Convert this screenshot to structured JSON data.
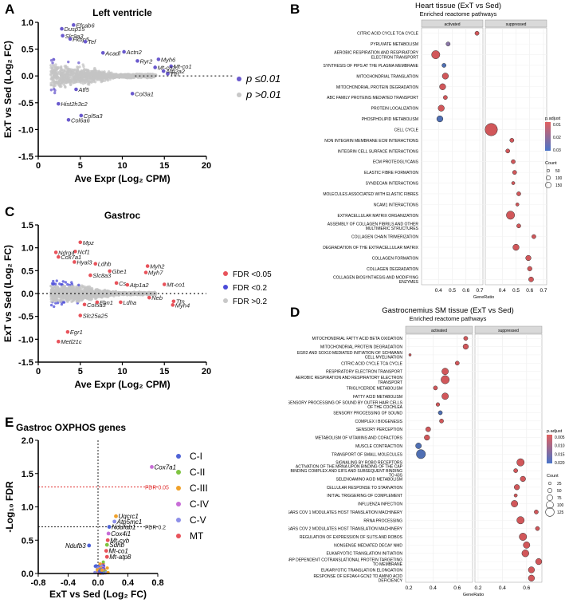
{
  "panels": {
    "a": {
      "label": "A"
    },
    "b": {
      "label": "B"
    },
    "c": {
      "label": "C"
    },
    "d": {
      "label": "D"
    },
    "e": {
      "label": "E"
    }
  },
  "chart_data": [
    {
      "id": "A",
      "type": "scatter",
      "title": "Left ventricle",
      "xlabel": "Ave Expr (Log₂ CPM)",
      "ylabel": "ExT vs Sed (Log₂ FC)",
      "xlim": [
        0,
        20
      ],
      "ylim": [
        -1.5,
        1.0
      ],
      "xticks": [
        0,
        5,
        10,
        15,
        20
      ],
      "yticks": [
        -1.5,
        -1.0,
        -0.5,
        0.0,
        0.5,
        1.0
      ],
      "legend": [
        {
          "label": "p ≤0.01",
          "color": "#6a5acd"
        },
        {
          "label": "p >0.01",
          "color": "#c8c8c8"
        }
      ],
      "genes": [
        {
          "name": "Efcab6",
          "x": 4.2,
          "y": 0.95
        },
        {
          "name": "Dusp15",
          "x": 2.8,
          "y": 0.88
        },
        {
          "name": "Slc9a3",
          "x": 2.9,
          "y": 0.75
        },
        {
          "name": "Fkbp5",
          "x": 3.8,
          "y": 0.69
        },
        {
          "name": "Tef",
          "x": 5.6,
          "y": 0.64
        },
        {
          "name": "Acadl",
          "x": 7.7,
          "y": 0.43
        },
        {
          "name": "Actn2",
          "x": 10.2,
          "y": 0.45
        },
        {
          "name": "Ryr2",
          "x": 11.8,
          "y": 0.28
        },
        {
          "name": "Myh6",
          "x": 14.3,
          "y": 0.31
        },
        {
          "name": "Mt-co1",
          "x": 15.8,
          "y": 0.18
        },
        {
          "name": "Mt-co2",
          "x": 13.9,
          "y": 0.16
        },
        {
          "name": "Atp2a2",
          "x": 14.9,
          "y": 0.09
        },
        {
          "name": "Ttn",
          "x": 15.4,
          "y": 0.04
        },
        {
          "name": "Atf5",
          "x": 4.5,
          "y": -0.25
        },
        {
          "name": "Col3a1",
          "x": 11.2,
          "y": -0.33
        },
        {
          "name": "Hist2h3c2",
          "x": 2.4,
          "y": -0.52
        },
        {
          "name": "Col5a3",
          "x": 5.1,
          "y": -0.74
        },
        {
          "name": "Col6a6",
          "x": 3.6,
          "y": -0.82
        }
      ]
    },
    {
      "id": "B",
      "type": "dotplot",
      "title": "Heart tissue (ExT vs Sed)",
      "subtitle": "Enriched reactome pathways",
      "facets": [
        "activated",
        "suppressed"
      ],
      "xlabel": "GeneRatio",
      "xlim": [
        0.3,
        0.7
      ],
      "xticks": [
        0.4,
        0.5,
        0.6,
        0.7
      ],
      "color_legend": {
        "title": "p.adjust",
        "ticks": [
          "0.01",
          "0.02",
          "0.03"
        ]
      },
      "size_legend": {
        "title": "Count",
        "ticks": [
          "50",
          "100",
          "150"
        ]
      },
      "terms": [
        {
          "label": "CITRIC ACID CYCLE TCA CYCLE",
          "facet": 0,
          "ratio": 0.68,
          "size": 1,
          "p": 0.4
        },
        {
          "label": "PYRUVATE METABOLISM",
          "facet": 0,
          "ratio": 0.47,
          "size": 1,
          "p": 0.5
        },
        {
          "label": "AEROBIC RESPIRATION AND RESPIRATORY ELECTRON TRANSPORT",
          "facet": 0,
          "ratio": 0.38,
          "size": 2,
          "p": 0.1
        },
        {
          "label": "SYNTHESIS OF PIPS AT THE PLASMA MEMBRANE",
          "facet": 0,
          "ratio": 0.44,
          "size": 1,
          "p": 0.95
        },
        {
          "label": "MITOCHONDRIAL TRANSLATION",
          "facet": 0,
          "ratio": 0.45,
          "size": 1.5,
          "p": 0.2
        },
        {
          "label": "MITOCHONDRIAL PROTEIN DEGRADATION",
          "facet": 0,
          "ratio": 0.43,
          "size": 1.5,
          "p": 0.3
        },
        {
          "label": "ABC FAMILY PROTEINS MEDIATED TRANSPORT",
          "facet": 0,
          "ratio": 0.45,
          "size": 1,
          "p": 0.4
        },
        {
          "label": "PROTEIN LOCALIZATION",
          "facet": 0,
          "ratio": 0.42,
          "size": 1.5,
          "p": 0.3
        },
        {
          "label": "PHOSPHOLIPID METABOLISM",
          "facet": 0,
          "ratio": 0.41,
          "size": 1.5,
          "p": 0.8
        },
        {
          "label": "CELL CYCLE",
          "facet": 1,
          "ratio": 0.32,
          "size": 3,
          "p": 0.2
        },
        {
          "label": "NON INTEGRIN MEMBRANE ECM INTERACTIONS",
          "facet": 1,
          "ratio": 0.47,
          "size": 1,
          "p": 0.2
        },
        {
          "label": "INTEGRIN CELL SURFACE INTERACTIONS",
          "facet": 1,
          "ratio": 0.44,
          "size": 1,
          "p": 0.2
        },
        {
          "label": "ECM PROTEOGLYCANS",
          "facet": 1,
          "ratio": 0.48,
          "size": 1,
          "p": 0.2
        },
        {
          "label": "ELASTIC FIBRE FORMATION",
          "facet": 1,
          "ratio": 0.49,
          "size": 1,
          "p": 0.2
        },
        {
          "label": "SYNDECAN INTERACTIONS",
          "facet": 1,
          "ratio": 0.48,
          "size": 0.8,
          "p": 0.2
        },
        {
          "label": "MOLECULES ASSOCIATED WITH ELASTIC FIBRES",
          "facet": 1,
          "ratio": 0.52,
          "size": 1,
          "p": 0.2
        },
        {
          "label": "NCAM1 INTERACTIONS",
          "facet": 1,
          "ratio": 0.51,
          "size": 0.8,
          "p": 0.2
        },
        {
          "label": "EXTRACELLULAR MATRIX ORGANIZATION",
          "facet": 1,
          "ratio": 0.46,
          "size": 2,
          "p": 0.1
        },
        {
          "label": "ASSEMBLY OF COLLAGEN FIBRILS AND OTHER MULTIMERIC STRUCTURES",
          "facet": 1,
          "ratio": 0.52,
          "size": 1,
          "p": 0.2
        },
        {
          "label": "COLLAGEN CHAIN TRIMERIZATION",
          "facet": 1,
          "ratio": 0.63,
          "size": 1,
          "p": 0.2
        },
        {
          "label": "DEGRADATION OF THE EXTRACELLULAR MATRIX",
          "facet": 1,
          "ratio": 0.5,
          "size": 1.5,
          "p": 0.2
        },
        {
          "label": "COLLAGEN FORMATION",
          "facet": 1,
          "ratio": 0.59,
          "size": 1.3,
          "p": 0.2
        },
        {
          "label": "COLLAGEN DEGRADATION",
          "facet": 1,
          "ratio": 0.6,
          "size": 1.1,
          "p": 0.2
        },
        {
          "label": "COLLAGEN BIOSYNTHESIS AND MODIFYING ENZYMES",
          "facet": 1,
          "ratio": 0.61,
          "size": 1.2,
          "p": 0.2
        }
      ]
    },
    {
      "id": "C",
      "type": "scatter",
      "title": "Gastroc",
      "xlabel": "Ave Expr (Log₂ CPM)",
      "ylabel": "ExT vs Sed (Log₂ FC)",
      "xlim": [
        0,
        20
      ],
      "ylim": [
        -1.5,
        1.5
      ],
      "xticks": [
        0,
        5,
        10,
        15,
        20
      ],
      "yticks": [
        -1.5,
        -1.0,
        -0.5,
        0.0,
        0.5,
        1.0,
        1.5
      ],
      "legend": [
        {
          "label": "FDR <0.05",
          "color": "#e8535b"
        },
        {
          "label": "FDR <0.2",
          "color": "#4b4bd8"
        },
        {
          "label": "FDR >0.2",
          "color": "#c8c8c8"
        }
      ],
      "genes": [
        {
          "name": "Mpz",
          "x": 5.0,
          "y": 1.12
        },
        {
          "name": "Ncf1",
          "x": 4.4,
          "y": 0.92
        },
        {
          "name": "Ndrg4",
          "x": 2.1,
          "y": 0.9
        },
        {
          "name": "Cox7a1",
          "x": 2.4,
          "y": 0.8
        },
        {
          "name": "Hyal3",
          "x": 4.3,
          "y": 0.69
        },
        {
          "name": "Ldhb",
          "x": 6.8,
          "y": 0.65
        },
        {
          "name": "Myh2",
          "x": 13.0,
          "y": 0.6
        },
        {
          "name": "Gbe1",
          "x": 8.5,
          "y": 0.49
        },
        {
          "name": "Myh7",
          "x": 12.8,
          "y": 0.46
        },
        {
          "name": "Slc8a3",
          "x": 6.2,
          "y": 0.4
        },
        {
          "name": "Cs",
          "x": 9.3,
          "y": 0.23
        },
        {
          "name": "Atp1a2",
          "x": 10.6,
          "y": 0.19
        },
        {
          "name": "Mt-co1",
          "x": 15.0,
          "y": 0.2
        },
        {
          "name": "Col5a3",
          "x": 5.5,
          "y": -0.24
        },
        {
          "name": "Fbn1",
          "x": 7.0,
          "y": -0.19
        },
        {
          "name": "Ldha",
          "x": 9.8,
          "y": -0.19
        },
        {
          "name": "Neb",
          "x": 13.2,
          "y": -0.09
        },
        {
          "name": "Ttn",
          "x": 16.1,
          "y": -0.17
        },
        {
          "name": "Myh4",
          "x": 16.0,
          "y": -0.25
        },
        {
          "name": "Slc25a25",
          "x": 5.0,
          "y": -0.48
        },
        {
          "name": "Egr1",
          "x": 3.5,
          "y": -0.84
        },
        {
          "name": "Metl21c",
          "x": 2.4,
          "y": -1.05
        }
      ]
    },
    {
      "id": "D",
      "type": "dotplot",
      "title": "Gastrocnemius SM tissue (ExT vs Sed)",
      "subtitle": "Enriched reactome pathways",
      "facets": [
        "activated",
        "suppressed"
      ],
      "xlabel": "GeneRatio",
      "xlim": [
        0.2,
        0.7
      ],
      "xticks": [
        0.2,
        0.4,
        0.6
      ],
      "color_legend": {
        "title": "p.adjust",
        "ticks": [
          "0.005",
          "0.010",
          "0.015",
          "0.020"
        ]
      },
      "size_legend": {
        "title": "Count",
        "ticks": [
          "25",
          "50",
          "75",
          "100",
          "125"
        ]
      },
      "terms": [
        {
          "label": "MITOCHONDRIAL FATTY ACID BETA OXIDATION",
          "facet": 0,
          "ratio": 0.67,
          "size": 1,
          "p": 0.2
        },
        {
          "label": "MITOCHONDRIAL PROTEIN DEGRADATION",
          "facet": 0,
          "ratio": 0.67,
          "size": 1.3,
          "p": 0.2
        },
        {
          "label": "EGR2 AND SOX10 MEDIATED INITIATION OF SCHWANN CELL MYELINATION",
          "facet": 0,
          "ratio": 0.21,
          "size": 0.6,
          "p": 0.3
        },
        {
          "label": "CITRIC ACID CYCLE TCA CYCLE",
          "facet": 0,
          "ratio": 0.6,
          "size": 1,
          "p": 0.3
        },
        {
          "label": "RESPIRATORY ELECTRON TRANSPORT",
          "facet": 0,
          "ratio": 0.5,
          "size": 1.6,
          "p": 0.2
        },
        {
          "label": "AEROBIC RESPIRATION AND RESPIRATORY ELECTRON TRANSPORT",
          "facet": 0,
          "ratio": 0.5,
          "size": 2.0,
          "p": 0.2
        },
        {
          "label": "TRIGLYCERIDE METABOLISM",
          "facet": 0,
          "ratio": 0.42,
          "size": 1,
          "p": 0.3
        },
        {
          "label": "FATTY ACID METABOLISM",
          "facet": 0,
          "ratio": 0.5,
          "size": 1.6,
          "p": 0.2
        },
        {
          "label": "SENSORY PROCESSING OF SOUND BY OUTER HAIR CELLS OF THE COCHLEA",
          "facet": 0,
          "ratio": 0.44,
          "size": 0.9,
          "p": 0.4
        },
        {
          "label": "SENSORY PROCESSING OF SOUND",
          "facet": 0,
          "ratio": 0.46,
          "size": 1,
          "p": 0.95
        },
        {
          "label": "COMPLEX I BIOGENESIS",
          "facet": 0,
          "ratio": 0.47,
          "size": 1,
          "p": 0.3
        },
        {
          "label": "SENSORY PERCEPTION",
          "facet": 0,
          "ratio": 0.36,
          "size": 1.2,
          "p": 0.3
        },
        {
          "label": "METABOLISM OF VITAMINS AND COFACTORS",
          "facet": 0,
          "ratio": 0.35,
          "size": 1.3,
          "p": 0.3
        },
        {
          "label": "MUSCLE CONTRACTION",
          "facet": 0,
          "ratio": 0.28,
          "size": 1.4,
          "p": 0.85
        },
        {
          "label": "TRANSPORT OF SMALL MOLECULES",
          "facet": 0,
          "ratio": 0.3,
          "size": 2.2,
          "p": 0.85
        },
        {
          "label": "SIGNALING BY ROBO RECEPTORS",
          "facet": 1,
          "ratio": 0.55,
          "size": 1.8,
          "p": 0.2
        },
        {
          "label": "ACTIVATION OF THE MRNA UPON BINDING OF THE CAP BINDING COMPLEX AND EIFS AND SUBSEQUENT BINDING TO 43S",
          "facet": 1,
          "ratio": 0.51,
          "size": 1,
          "p": 0.2
        },
        {
          "label": "SELENOAMINO ACID METABOLISM",
          "facet": 1,
          "ratio": 0.57,
          "size": 1.3,
          "p": 0.2
        },
        {
          "label": "CELLULAR RESPONSE TO STARVATION",
          "facet": 1,
          "ratio": 0.52,
          "size": 1.3,
          "p": 0.2
        },
        {
          "label": "INITIAL TRIGGERING OF COMPLEMENT",
          "facet": 1,
          "ratio": 0.51,
          "size": 0.8,
          "p": 0.2
        },
        {
          "label": "INFLUENZA INFECTION",
          "facet": 1,
          "ratio": 0.5,
          "size": 1.6,
          "p": 0.2
        },
        {
          "label": "SARS COV 1 MODULATES HOST TRANSLATION MACHINERY",
          "facet": 1,
          "ratio": 0.68,
          "size": 1,
          "p": 0.2
        },
        {
          "label": "RRNA PROCESSING",
          "facet": 1,
          "ratio": 0.55,
          "size": 1.8,
          "p": 0.2
        },
        {
          "label": "SARS COV 2 MODULATES HOST TRANSLATION MACHINERY",
          "facet": 1,
          "ratio": 0.69,
          "size": 1,
          "p": 0.2
        },
        {
          "label": "REGULATION OF EXPRESSION OF SLITS AND ROBOS",
          "facet": 1,
          "ratio": 0.57,
          "size": 1.8,
          "p": 0.2
        },
        {
          "label": "NONSENSE MEDIATED DECAY NMD",
          "facet": 1,
          "ratio": 0.6,
          "size": 1.6,
          "p": 0.2
        },
        {
          "label": "EUKARYOTIC TRANSLATION INITIATION",
          "facet": 1,
          "ratio": 0.59,
          "size": 1.7,
          "p": 0.2
        },
        {
          "label": "SRP DEPENDENT COTRANSLATIONAL PROTEIN TARGETING TO MEMBRANE",
          "facet": 1,
          "ratio": 0.7,
          "size": 1.5,
          "p": 0.2
        },
        {
          "label": "EUKARYOTIC TRANSLATION ELONGATION",
          "facet": 1,
          "ratio": 0.64,
          "size": 1.5,
          "p": 0.2
        },
        {
          "label": "RESPONSE OF EIF2AK4 GCN2 TO AMINO ACID DEFICIENCY",
          "facet": 1,
          "ratio": 0.64,
          "size": 1.5,
          "p": 0.2
        }
      ]
    },
    {
      "id": "E",
      "type": "scatter",
      "title": "Gastroc OXPHOS genes",
      "xlabel": "ExT vs Sed (Log₂ FC)",
      "ylabel": "-Log₁₀ FDR",
      "xlim": [
        -0.8,
        0.8
      ],
      "ylim": [
        0,
        2.0
      ],
      "xticks": [
        -0.8,
        -0.4,
        0.0,
        0.4,
        0.8
      ],
      "xticklabels": [
        "-0.8",
        "-0.4",
        "0.0",
        "0.4",
        "0.8"
      ],
      "yticks": [
        0.0,
        0.5,
        1.0,
        1.5,
        2.0
      ],
      "thresholds": [
        {
          "label": "FDR 0.05",
          "y": 1.3,
          "color": "#e03030"
        },
        {
          "label": "FDR 0.2",
          "y": 0.7,
          "color": "#222222"
        }
      ],
      "legend": [
        {
          "label": "C-I",
          "color": "#4f63d6"
        },
        {
          "label": "C-II",
          "color": "#7fc441"
        },
        {
          "label": "C-III",
          "color": "#f0a12a"
        },
        {
          "label": "C-IV",
          "color": "#c86dd7"
        },
        {
          "label": "C-V",
          "color": "#8d8fe8"
        },
        {
          "label": "MT",
          "color": "#e8535b"
        }
      ],
      "genes": [
        {
          "name": "Cox7a1",
          "x": 0.72,
          "y": 1.6,
          "c": 3
        },
        {
          "name": "Uqcrc1",
          "x": 0.24,
          "y": 0.86,
          "c": 2
        },
        {
          "name": "Atp5mc1",
          "x": 0.22,
          "y": 0.78,
          "c": 4
        },
        {
          "name": "Ndufab1",
          "x": 0.15,
          "y": 0.7,
          "c": 0
        },
        {
          "name": "Cox4i1",
          "x": 0.14,
          "y": 0.6,
          "c": 3
        },
        {
          "name": "Mt-cyb",
          "x": 0.13,
          "y": 0.5,
          "c": 5
        },
        {
          "name": "Sdhb",
          "x": 0.12,
          "y": 0.43,
          "c": 1
        },
        {
          "name": "Mt-co1",
          "x": 0.11,
          "y": 0.34,
          "c": 5
        },
        {
          "name": "Mt-atp8",
          "x": 0.12,
          "y": 0.25,
          "c": 5
        },
        {
          "name": "Ndufb3",
          "x": -0.12,
          "y": 0.42,
          "c": 0
        }
      ]
    }
  ]
}
